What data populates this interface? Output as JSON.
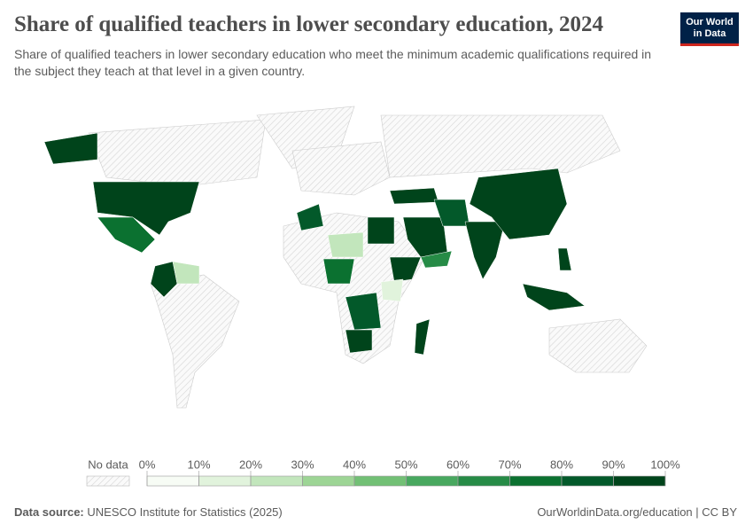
{
  "header": {
    "title": "Share of qualified teachers in lower secondary education, 2024",
    "subtitle": "Share of qualified teachers in lower secondary education who meet the minimum academic qualifications required in the subject they teach at that level in a given country.",
    "logo": [
      "Our World",
      "in Data"
    ]
  },
  "map": {
    "type": "choropleth",
    "values": [
      95,
      94,
      75,
      92,
      20,
      90,
      28,
      75,
      92,
      15,
      85,
      92,
      92,
      85,
      90,
      90,
      60,
      88,
      90,
      95,
      93,
      90
    ],
    "legend": {
      "no_data_label": "No data",
      "ticks": [
        {
          "value": 0,
          "label": "0%"
        },
        {
          "value": 10,
          "label": "10%"
        },
        {
          "value": 20,
          "label": "20%"
        },
        {
          "value": 30,
          "label": "30%"
        },
        {
          "value": 40,
          "label": "40%"
        },
        {
          "value": 50,
          "label": "50%"
        },
        {
          "value": 60,
          "label": "60%"
        },
        {
          "value": 70,
          "label": "70%"
        },
        {
          "value": 80,
          "label": "80%"
        },
        {
          "value": 90,
          "label": "90%"
        },
        {
          "value": 100,
          "label": "100%"
        }
      ],
      "colors": [
        "#f7fcf5",
        "#e1f3dc",
        "#c2e6bc",
        "#9dd595",
        "#72c075",
        "#48a85f",
        "#268b46",
        "#0b7130",
        "#03592a",
        "#00441b"
      ]
    }
  },
  "footer": {
    "source_label": "Data source:",
    "source": "UNESCO Institute for Statistics (2025)",
    "url": "OurWorldinData.org/education | CC BY"
  }
}
